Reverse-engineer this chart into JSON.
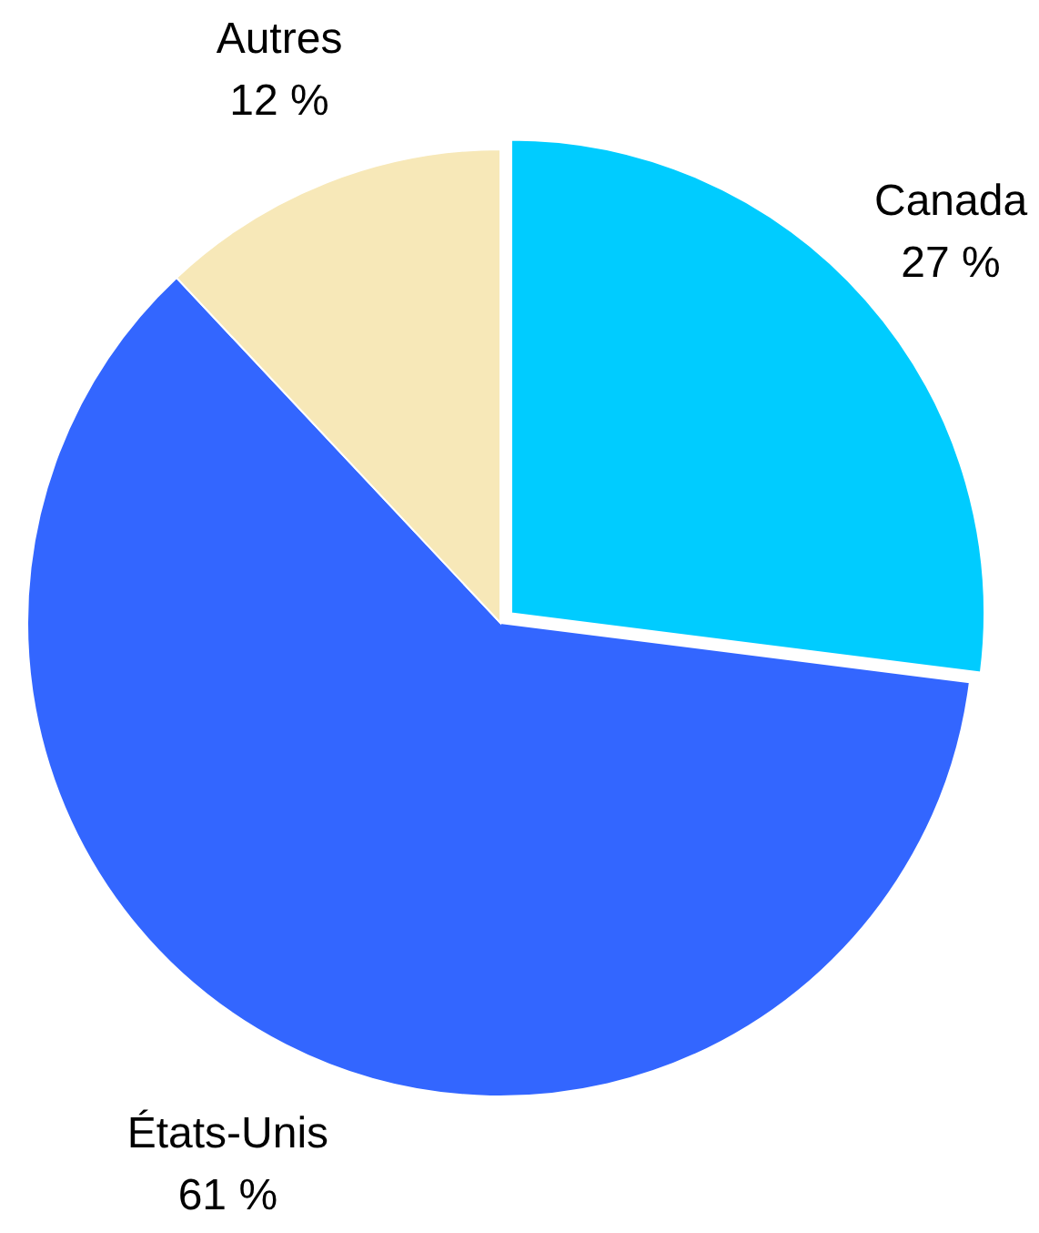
{
  "chart_data": {
    "type": "pie",
    "categories": [
      "Canada",
      "États-Unis",
      "Autres"
    ],
    "values": [
      27,
      61,
      12
    ],
    "colors": [
      "#00ccff",
      "#3366ff",
      "#f7e8b8"
    ],
    "value_labels": [
      "27 %",
      "61 %",
      "12 %"
    ]
  }
}
